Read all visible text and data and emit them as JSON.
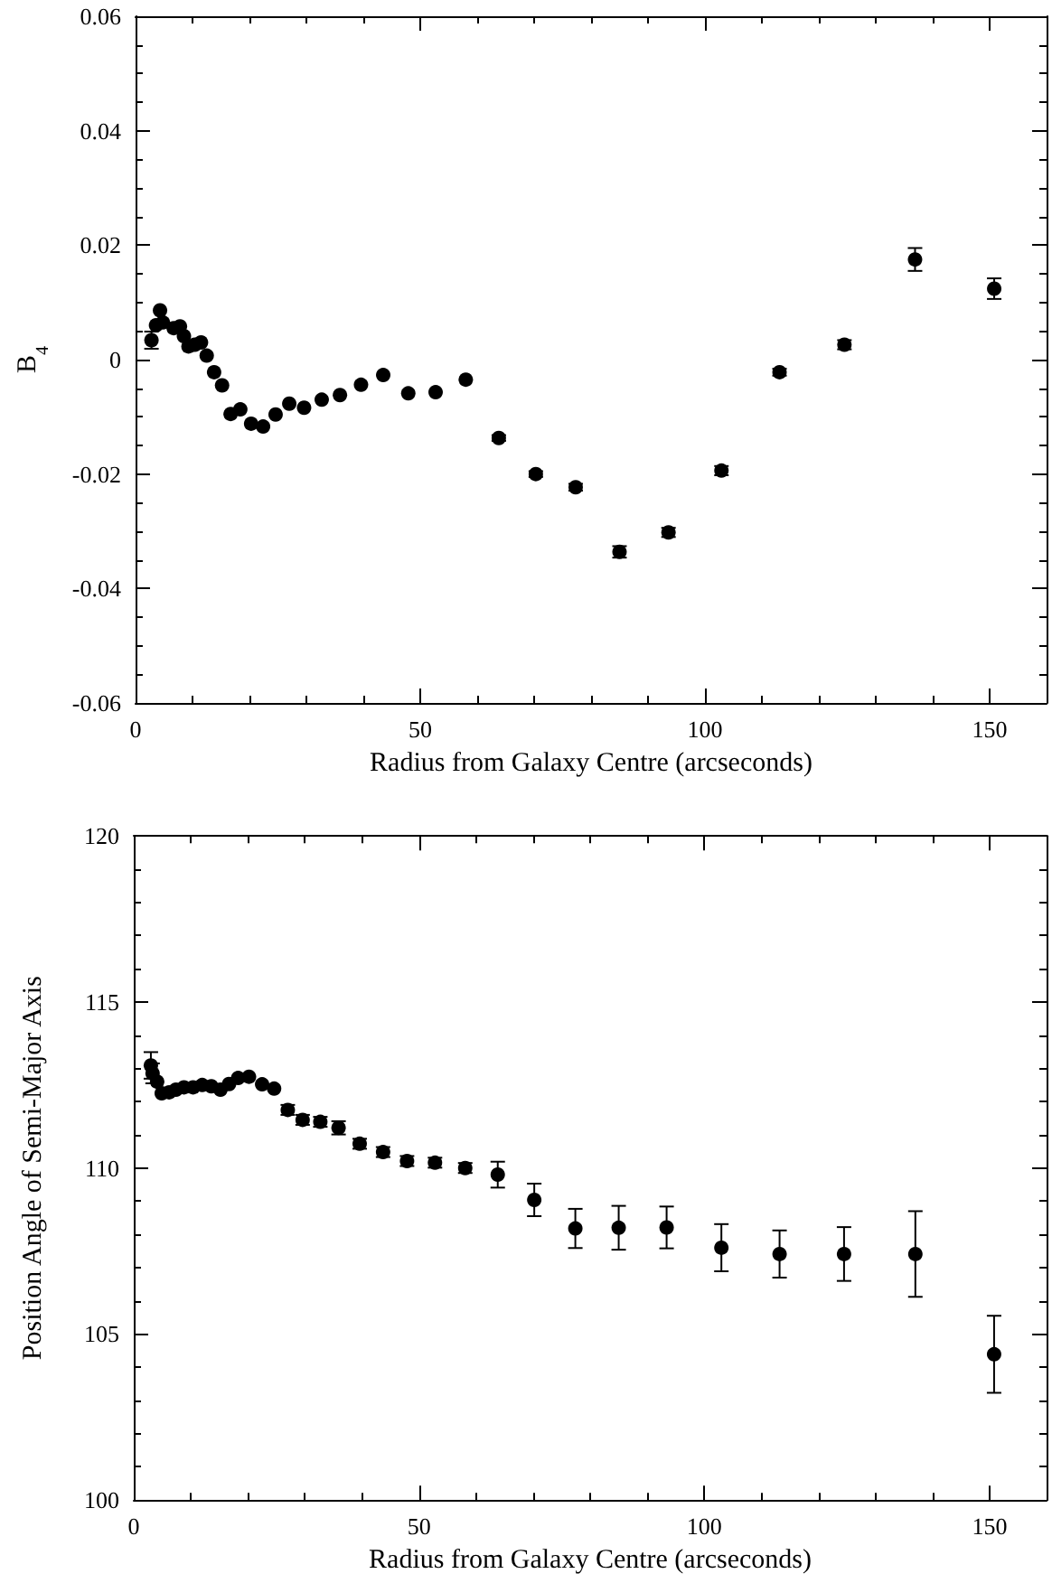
{
  "chart_data": [
    {
      "type": "scatter",
      "xlabel": "Radius from Galaxy Centre (arcseconds)",
      "ylabel": "B$_{4}$",
      "color": "#000000",
      "marker": "circle",
      "x": [
        2.8,
        3.2,
        3.6,
        4.3,
        4.8,
        6.2,
        6.7,
        7.8,
        8.5,
        9.3,
        10.4,
        11.5,
        12.5,
        13.8,
        15.2,
        16.7,
        18.4,
        20.3,
        22.4,
        24.6,
        27.0,
        29.6,
        32.7,
        35.9,
        39.6,
        43.5,
        47.9,
        52.7,
        58.0,
        63.8,
        70.3,
        77.3,
        85.0,
        93.6,
        102.9,
        113.1,
        124.5,
        136.9,
        150.8
      ],
      "values": [
        0.0034,
        null,
        0.006,
        0.0086,
        0.0065,
        null,
        0.0055,
        0.0058,
        0.0041,
        0.0023,
        0.0026,
        0.003,
        0.0007,
        -0.0022,
        -0.0045,
        -0.0095,
        -0.0087,
        -0.0112,
        -0.0117,
        -0.0096,
        -0.0077,
        -0.0084,
        -0.007,
        -0.0062,
        -0.0044,
        -0.0027,
        -0.0059,
        -0.0057,
        -0.0035,
        -0.0137,
        -0.02,
        -0.0223,
        -0.0336,
        -0.0302,
        -0.0194,
        -0.0022,
        0.0026,
        0.0175,
        0.0124
      ],
      "errors": [
        0.0015,
        null,
        null,
        null,
        null,
        null,
        null,
        null,
        null,
        null,
        null,
        null,
        null,
        null,
        null,
        null,
        null,
        null,
        null,
        null,
        null,
        null,
        null,
        null,
        null,
        null,
        null,
        null,
        null,
        0.0005,
        0.0005,
        0.0006,
        0.001,
        0.0008,
        0.0008,
        0.0006,
        0.0008,
        0.002,
        0.0018
      ],
      "xlim": [
        0,
        160
      ],
      "xticks": [
        0,
        50,
        100,
        150
      ],
      "ylim": [
        -0.06,
        0.06
      ],
      "yticks": [
        -0.06,
        -0.04,
        -0.02,
        {
          "value": 0,
          "label": "0"
        },
        0.02,
        0.04,
        0.06
      ]
    },
    {
      "type": "scatter",
      "xlabel": "Radius from Galaxy Centre (arcseconds)",
      "ylabel": "Position Angle of Semi-Major Axis",
      "color": "#000000",
      "marker": "circle",
      "x": [
        3.0,
        3.3,
        4.1,
        4.9,
        6.2,
        7.4,
        8.8,
        10.4,
        12.0,
        13.6,
        15.2,
        16.7,
        18.3,
        20.2,
        22.5,
        24.6,
        27.0,
        29.6,
        32.7,
        35.9,
        39.6,
        43.7,
        47.9,
        52.8,
        58.1,
        63.8,
        70.2,
        77.4,
        85.0,
        93.4,
        103.0,
        113.2,
        124.5,
        137.0,
        150.8
      ],
      "values": [
        113.09,
        112.85,
        112.6,
        112.25,
        112.28,
        112.36,
        112.43,
        112.43,
        112.5,
        112.46,
        112.36,
        112.53,
        112.71,
        112.75,
        112.52,
        112.39,
        111.75,
        111.45,
        111.39,
        111.21,
        110.73,
        110.48,
        110.21,
        110.16,
        110.0,
        109.8,
        109.04,
        108.18,
        108.2,
        108.21,
        107.6,
        107.41,
        107.41,
        107.41,
        104.39
      ],
      "errors": [
        0.4,
        0.3,
        null,
        null,
        null,
        null,
        null,
        null,
        null,
        null,
        null,
        null,
        null,
        null,
        null,
        null,
        0.15,
        0.15,
        0.15,
        0.2,
        0.15,
        0.15,
        0.15,
        0.15,
        0.15,
        0.39,
        0.49,
        0.59,
        0.66,
        0.63,
        0.71,
        0.71,
        0.81,
        1.29,
        1.16
      ],
      "xlim": [
        0,
        160
      ],
      "xticks": [
        0,
        50,
        100,
        150
      ],
      "ylim": [
        100,
        120
      ],
      "yticks": [
        100,
        105,
        110,
        115,
        120
      ]
    }
  ]
}
